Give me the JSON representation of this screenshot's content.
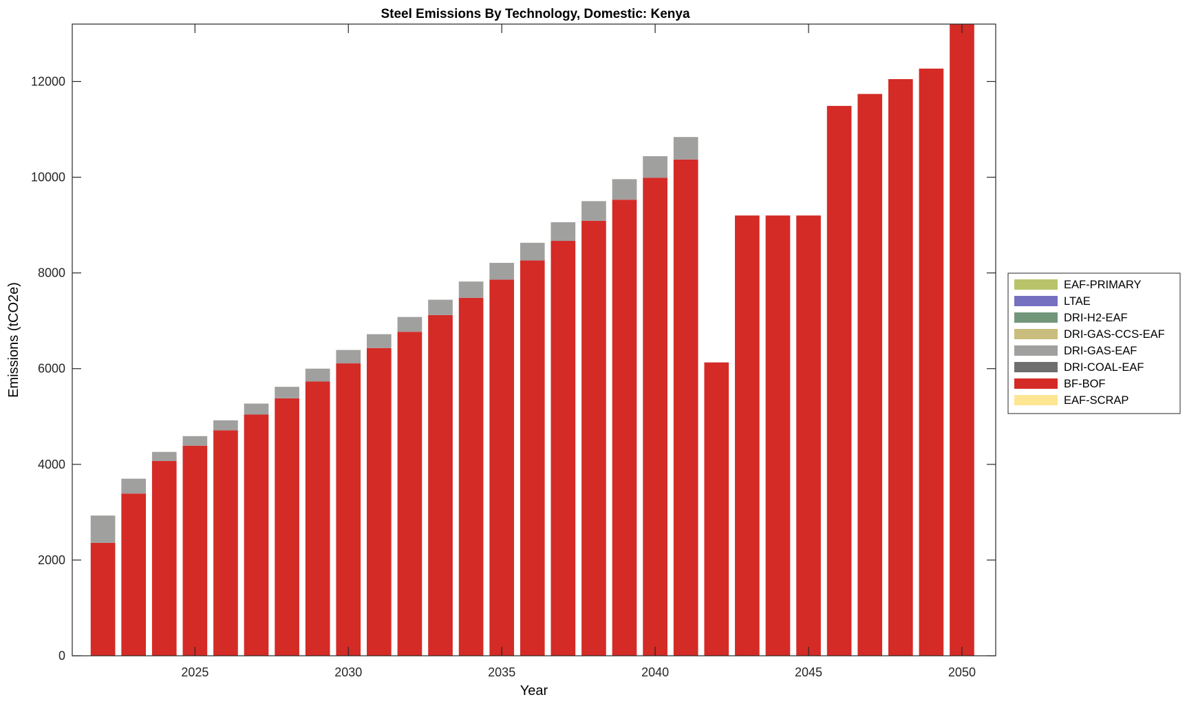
{
  "chart_data": {
    "type": "bar",
    "stacked": true,
    "title": "Steel Emissions By Technology, Domestic: Kenya",
    "xlabel": "Year",
    "ylabel": "Emissions (tCO2e)",
    "xlim": [
      2021,
      2051.1
    ],
    "ylim": [
      0,
      13200
    ],
    "xticks": [
      2025,
      2030,
      2035,
      2040,
      2045,
      2050
    ],
    "yticks": [
      0,
      2000,
      4000,
      6000,
      8000,
      10000,
      12000
    ],
    "legend_position": "outside-right",
    "categories": [
      2022,
      2023,
      2024,
      2025,
      2026,
      2027,
      2028,
      2029,
      2030,
      2031,
      2032,
      2033,
      2034,
      2035,
      2036,
      2037,
      2038,
      2039,
      2040,
      2041,
      2042,
      2043,
      2044,
      2045,
      2046,
      2047,
      2048,
      2049,
      2050
    ],
    "series": [
      {
        "name": "EAF-PRIMARY",
        "color": "#b9c46a",
        "values": [
          0,
          0,
          0,
          0,
          0,
          0,
          0,
          0,
          0,
          0,
          0,
          0,
          0,
          0,
          0,
          0,
          0,
          0,
          0,
          0,
          0,
          0,
          0,
          0,
          0,
          0,
          0,
          0,
          0
        ]
      },
      {
        "name": "LTAE",
        "color": "#7570c0",
        "values": [
          0,
          0,
          0,
          0,
          0,
          0,
          0,
          0,
          0,
          0,
          0,
          0,
          0,
          0,
          0,
          0,
          0,
          0,
          0,
          0,
          0,
          0,
          0,
          0,
          0,
          0,
          0,
          0,
          0
        ]
      },
      {
        "name": "DRI-H2-EAF",
        "color": "#72967a",
        "values": [
          0,
          0,
          0,
          0,
          0,
          0,
          0,
          0,
          0,
          0,
          0,
          0,
          0,
          0,
          0,
          0,
          0,
          0,
          0,
          0,
          0,
          0,
          0,
          0,
          0,
          0,
          0,
          0,
          0
        ]
      },
      {
        "name": "DRI-GAS-CCS-EAF",
        "color": "#c8bd7c",
        "values": [
          0,
          0,
          0,
          0,
          0,
          0,
          0,
          0,
          0,
          0,
          0,
          0,
          0,
          0,
          0,
          0,
          0,
          0,
          0,
          0,
          0,
          0,
          0,
          0,
          0,
          0,
          0,
          0,
          0
        ]
      },
      {
        "name": "DRI-GAS-EAF",
        "color": "#a0a09f",
        "values": [
          570,
          310,
          190,
          200,
          210,
          230,
          240,
          270,
          280,
          290,
          310,
          320,
          340,
          350,
          370,
          390,
          410,
          430,
          450,
          470,
          0,
          0,
          0,
          0,
          0,
          0,
          0,
          0,
          0
        ]
      },
      {
        "name": "DRI-COAL-EAF",
        "color": "#6e6e6e",
        "values": [
          0,
          0,
          0,
          0,
          0,
          0,
          0,
          0,
          0,
          0,
          0,
          0,
          0,
          0,
          0,
          0,
          0,
          0,
          0,
          0,
          0,
          0,
          0,
          0,
          0,
          0,
          0,
          0,
          0
        ]
      },
      {
        "name": "BF-BOF",
        "color": "#d42b26",
        "values": [
          2360,
          3390,
          4070,
          4390,
          4710,
          5040,
          5380,
          5730,
          6110,
          6430,
          6770,
          7120,
          7480,
          7860,
          8260,
          8670,
          9090,
          9530,
          9990,
          10370,
          6130,
          9200,
          9200,
          9200,
          11490,
          11740,
          12050,
          12270,
          13200
        ]
      },
      {
        "name": "EAF-SCRAP",
        "color": "#fde592",
        "values": [
          0,
          0,
          0,
          0,
          0,
          0,
          0,
          0,
          0,
          0,
          0,
          0,
          0,
          0,
          0,
          0,
          0,
          0,
          0,
          0,
          0,
          0,
          0,
          0,
          0,
          0,
          0,
          0,
          0
        ]
      }
    ]
  }
}
